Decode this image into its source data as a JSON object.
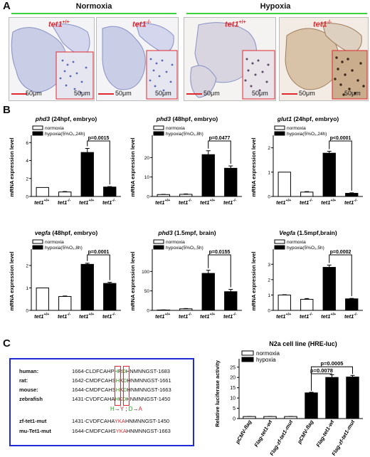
{
  "panels": {
    "a": "A",
    "b": "B",
    "c": "C"
  },
  "panelA": {
    "conditions": [
      "Normoxia",
      "Hypoxia"
    ],
    "images": [
      {
        "genotype": "tet1",
        "sup": "+/+",
        "scale_left": "50μm",
        "scale_inset": "50μm"
      },
      {
        "genotype": "tet1",
        "sup": "-/-",
        "scale_left": "50μm",
        "scale_inset": "50μm"
      },
      {
        "genotype": "tet1",
        "sup": "+/+",
        "scale_left": "50μm",
        "scale_inset": "50μm"
      },
      {
        "genotype": "tet1",
        "sup": "-/-",
        "scale_left": "50μm",
        "scale_inset": "50μm"
      }
    ],
    "colors": {
      "stain_normoxia": "#4a5aa8",
      "stain_hypoxia": "#6b4a2e",
      "bar": "#e0282f",
      "header_line": "#3bd23b"
    }
  },
  "chart_data": [
    {
      "type": "bar",
      "title": "phd3 (24hpf, embryo)",
      "title_gene": "phd3",
      "title_rest": "(24hpf, embryo)",
      "ylabel": "mRNA expression level",
      "categories": [
        "tet1 +/+",
        "tet1 -/-",
        "tet1 +/+",
        "tet1 -/-"
      ],
      "tick_gene": "tet1",
      "tick_sups": [
        "+/+",
        "-/-",
        "+/+",
        "-/-"
      ],
      "values": [
        1.0,
        0.5,
        4.9,
        1.05
      ],
      "errors": [
        0,
        0.05,
        0.45,
        0.05
      ],
      "fills": [
        "white",
        "white",
        "black",
        "black"
      ],
      "ylim": [
        0,
        6.5
      ],
      "legend": [
        "normoxia",
        "hypoxia(5%O₂,24h)"
      ],
      "pvalue": "p=0.0015",
      "p_between": [
        2,
        3
      ]
    },
    {
      "type": "bar",
      "title": "phd3 (48hpf, embryo)",
      "title_gene": "phd3",
      "title_rest": "(48hpf, embryo)",
      "ylabel": "mRNA expression level",
      "categories": [
        "tet1 +/+",
        "tet1 -/-",
        "tet1 +/+",
        "tet1 -/-"
      ],
      "tick_gene": "tet1",
      "tick_sups": [
        "+/+",
        "-/-",
        "+/+",
        "-/-"
      ],
      "values": [
        1.0,
        1.1,
        21.5,
        14.5
      ],
      "errors": [
        0.1,
        0.2,
        2.0,
        1.2
      ],
      "fills": [
        "white",
        "white",
        "black",
        "black"
      ],
      "ylim": [
        0,
        30
      ],
      "legend": [
        "normoxia",
        "hypoxia(5%O₂,8h)"
      ],
      "pvalue": "p=0.0477",
      "p_between": [
        2,
        3
      ]
    },
    {
      "type": "bar",
      "title": "glut1 (24hpf, embryo)",
      "title_gene": "glut1",
      "title_rest": "(24hpf, embryo)",
      "ylabel": "mRNA expression level",
      "categories": [
        "tet1 +/+",
        "tet1 -/-",
        "tet1 +/+",
        "tet1 -/-"
      ],
      "tick_gene": "tet1",
      "tick_sups": [
        "+/+",
        "-/-",
        "+/+",
        "-/-"
      ],
      "values": [
        1.0,
        0.18,
        1.78,
        0.13
      ],
      "errors": [
        0,
        0.02,
        0.08,
        0.02
      ],
      "fills": [
        "white",
        "white",
        "black",
        "black"
      ],
      "ylim": [
        0,
        2.4
      ],
      "legend": [
        "normoxia",
        "hypoxia(5%O₂,24h)"
      ],
      "pvalue": "p<0.0001",
      "p_between": [
        2,
        3
      ]
    },
    {
      "type": "bar",
      "title": "vegfa (48hpf, embryo)",
      "title_gene": "vegfa",
      "title_rest": "(48hpf, embryo)",
      "ylabel": "mRNA expression level",
      "categories": [
        "tet1 +/+",
        "tet1 -/-",
        "tet1 +/+",
        "tet1 -/-"
      ],
      "tick_gene": "tet1",
      "tick_sups": [
        "+/+",
        "-/-",
        "+/+",
        "-/-"
      ],
      "values": [
        1.0,
        0.62,
        2.05,
        1.2
      ],
      "errors": [
        0,
        0.02,
        0.05,
        0.05
      ],
      "fills": [
        "white",
        "white",
        "black",
        "black"
      ],
      "ylim": [
        0,
        2.6
      ],
      "legend": [
        "normoxia",
        "hypoxia(5%O₂,8h)"
      ],
      "pvalue": "p=0.0001",
      "p_between": [
        2,
        3
      ]
    },
    {
      "type": "bar",
      "title": "phd3 (1.5mpf, brain)",
      "title_gene": "phd3",
      "title_rest": "(1.5mpf, brain)",
      "ylabel": "mRNA expression level",
      "categories": [
        "tet1 +/+",
        "tet1 -/-",
        "tet1 +/+",
        "tet1 -/-"
      ],
      "tick_gene": "tet1",
      "tick_sups": [
        "+/+",
        "-/-",
        "+/+",
        "-/-"
      ],
      "values": [
        1.0,
        4.0,
        95,
        48
      ],
      "errors": [
        0.3,
        0.8,
        8,
        6
      ],
      "fills": [
        "white",
        "white",
        "black",
        "black"
      ],
      "ylim": [
        0,
        150
      ],
      "yticks": [
        0,
        50,
        100
      ],
      "legend": [
        "normoxia",
        "hypoxia(5%O₂,5h)"
      ],
      "pvalue": "p=0.0155",
      "p_between": [
        2,
        3
      ]
    },
    {
      "type": "bar",
      "title": "Vegfa (1.5mpf,brain)",
      "title_gene": "Vegfa",
      "title_rest": "(1.5mpf,brain)",
      "ylabel": "mRNA expression level",
      "categories": [
        "tet1 +/+",
        "tet1 -/-",
        "tet1 +/+",
        "tet1 -/-"
      ],
      "tick_gene": "tet1",
      "tick_sups": [
        "+/+",
        "-/-",
        "+/+",
        "-/-"
      ],
      "values": [
        1.0,
        0.72,
        2.8,
        0.75
      ],
      "errors": [
        0.02,
        0.05,
        0.15,
        0.03
      ],
      "fills": [
        "white",
        "white",
        "black",
        "black"
      ],
      "ylim": [
        0,
        3.8
      ],
      "legend": [
        "normoxia",
        "hypoxia(5%O₂,5h)"
      ],
      "pvalue": "p=0.0002",
      "p_between": [
        2,
        3
      ]
    },
    {
      "type": "bar",
      "title": "N2a cell line (HRE-luc)",
      "ylabel": "Relative luciferase activity",
      "categories": [
        "pCMV-flag",
        "Flag-tet1-wt",
        "Flag-zf-tet1-mut",
        "pCMV-flag",
        "Flag-tet1-wt",
        "Flag-zf-tet1-mut"
      ],
      "values": [
        1.0,
        1.0,
        1.0,
        12.5,
        20.0,
        20.2
      ],
      "errors": [
        0.05,
        0.05,
        0.05,
        0.3,
        1.3,
        0.8
      ],
      "fills": [
        "white",
        "white",
        "white",
        "black",
        "black",
        "black"
      ],
      "ylim": [
        0,
        27
      ],
      "legend": [
        "normoxia",
        "hypoxia"
      ],
      "pvalues": [
        {
          "text": "p=0.0078",
          "between": [
            3,
            4
          ]
        },
        {
          "text": "p=0.0005",
          "between": [
            3,
            5
          ]
        }
      ]
    }
  ],
  "panelC_seq": {
    "rows": [
      {
        "name": "human:",
        "seq_pre": "1664-CLDFCAHP",
        "seq_h": "H",
        "seq_mid": "R",
        "seq_d": "D",
        "seq_post": "HNMNNGST-1683"
      },
      {
        "name": "rat:",
        "seq_pre": "1642-CMDFCAHS",
        "seq_h": "H",
        "seq_mid": "K",
        "seq_d": "D",
        "seq_post": "HNMNNGST-1661"
      },
      {
        "name": "mouse:",
        "seq_pre": "1644-CMDFCAHS",
        "seq_h": "H",
        "seq_mid": "K",
        "seq_d": "D",
        "seq_post": "HNMNNGST-1663"
      },
      {
        "name": "zebrafish",
        "seq_pre": "1431-CVDFCAHA",
        "seq_h": "H",
        "seq_mid": "K",
        "seq_d": "D",
        "seq_post": "HNMNNGST-1450"
      },
      {
        "name": "zf-tet1-mut",
        "seq_pre": "1431-CVDFCAHA",
        "seq_h": "Y",
        "seq_mid": "K",
        "seq_d": "A",
        "seq_post": "HNMNNGST-1450"
      },
      {
        "name": "mu-Tet1-mut",
        "seq_pre": "1644-CMDFCAHS",
        "seq_h": "Y",
        "seq_mid": "K",
        "seq_d": "A",
        "seq_post": "HNMNNGST-1663"
      }
    ],
    "mutation_note": {
      "h": "H",
      "arrow1": "→",
      "y": "Y",
      "sep": " ; ",
      "d": "D",
      "arrow2": "→",
      "a": "A"
    }
  }
}
